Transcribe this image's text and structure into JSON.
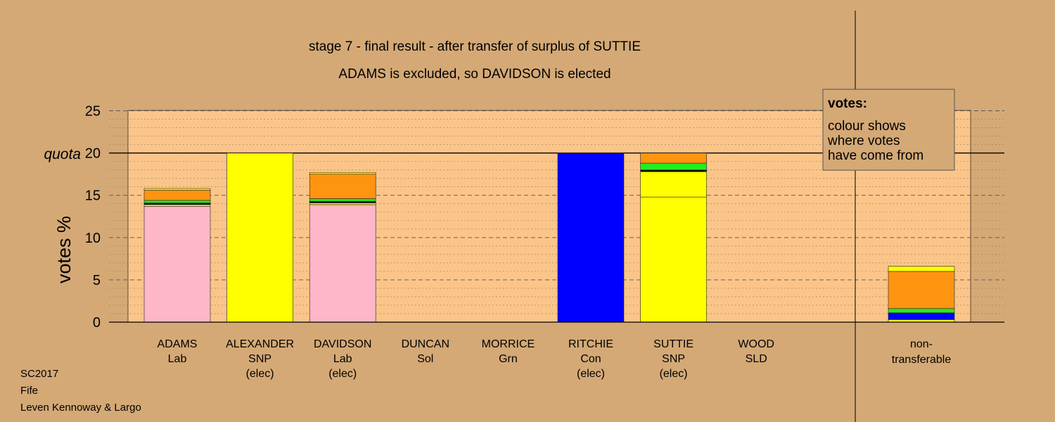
{
  "chart_data": {
    "type": "bar",
    "title": "stage 7 - final result - after transfer of surplus of SUTTIE",
    "subtitle": "ADAMS is excluded, so DAVIDSON is elected",
    "ylabel": "votes %",
    "ylim": [
      0,
      25
    ],
    "yticks": [
      0,
      5,
      10,
      15,
      20,
      25
    ],
    "quota": {
      "label": "quota",
      "value": 20
    },
    "colors": {
      "lab": "#ffb6c8",
      "snp": "#ffff00",
      "con": "#0000ff",
      "grn": "#22ee22",
      "sld": "#ff9410",
      "sol": "#000000",
      "plot_bg": "#fbc58a",
      "background": "#d4a976"
    },
    "candidates": [
      {
        "name": "ADAMS",
        "party": "Lab",
        "status": "",
        "segments": [
          {
            "from": "lab",
            "value": 13.7
          },
          {
            "from": "snp",
            "value": 0.2
          },
          {
            "from": "sol",
            "value": 0.1
          },
          {
            "from": "con",
            "value": 0.1
          },
          {
            "from": "grn",
            "value": 0.3
          },
          {
            "from": "sld",
            "value": 1.2
          },
          {
            "from": "snp",
            "value": 0.2
          }
        ]
      },
      {
        "name": "ALEXANDER",
        "party": "SNP",
        "status": "(elec)",
        "segments": [
          {
            "from": "snp",
            "value": 20.0
          }
        ]
      },
      {
        "name": "DAVIDSON",
        "party": "Lab",
        "status": "(elec)",
        "segments": [
          {
            "from": "lab",
            "value": 13.9
          },
          {
            "from": "snp",
            "value": 0.2
          },
          {
            "from": "sol",
            "value": 0.1
          },
          {
            "from": "con",
            "value": 0.1
          },
          {
            "from": "grn",
            "value": 0.3
          },
          {
            "from": "sld",
            "value": 2.9
          },
          {
            "from": "snp",
            "value": 0.2
          }
        ]
      },
      {
        "name": "DUNCAN",
        "party": "Sol",
        "status": "",
        "segments": []
      },
      {
        "name": "MORRICE",
        "party": "Grn",
        "status": "",
        "segments": []
      },
      {
        "name": "RITCHIE",
        "party": "Con",
        "status": "(elec)",
        "segments": [
          {
            "from": "con",
            "value": 20.0
          }
        ]
      },
      {
        "name": "SUTTIE",
        "party": "SNP",
        "status": "(elec)",
        "segments": [
          {
            "from": "snp",
            "value": 14.8
          },
          {
            "from": "snp",
            "value": 3.0
          },
          {
            "from": "sol",
            "value": 0.2
          },
          {
            "from": "grn",
            "value": 0.8
          },
          {
            "from": "sld",
            "value": 1.2
          }
        ]
      },
      {
        "name": "WOOD",
        "party": "SLD",
        "status": "",
        "segments": []
      }
    ],
    "nontransferable": {
      "label_lines": [
        "non-",
        "transferable"
      ],
      "segments": [
        {
          "from": "snp",
          "value": 0.3
        },
        {
          "from": "con",
          "value": 0.8
        },
        {
          "from": "grn",
          "value": 0.5
        },
        {
          "from": "sld",
          "value": 4.4
        },
        {
          "from": "snp",
          "value": 0.6
        }
      ]
    },
    "legend": {
      "title": "votes:",
      "lines": [
        "colour shows",
        "where votes",
        "have come from"
      ]
    }
  },
  "footer": [
    "SC2017",
    "Fife",
    "Leven Kennoway & Largo"
  ]
}
